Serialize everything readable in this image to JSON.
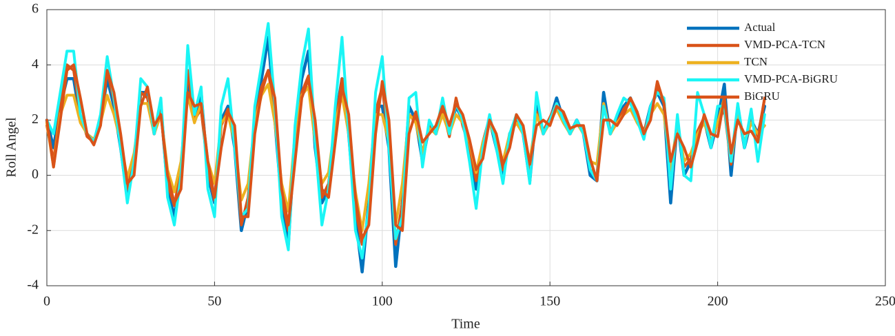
{
  "chart_data": {
    "type": "line",
    "xlabel": "Time",
    "ylabel": "Roll Angel",
    "xlim": [
      0,
      250
    ],
    "xticks": [
      0,
      50,
      100,
      150,
      200,
      250
    ],
    "ylim": [
      -4,
      6
    ],
    "yticks": [
      -4,
      -2,
      0,
      2,
      4,
      6
    ],
    "grid": true,
    "legend": "upper right",
    "x": [
      0,
      2,
      4,
      6,
      8,
      10,
      12,
      14,
      16,
      18,
      20,
      22,
      24,
      26,
      28,
      30,
      32,
      34,
      36,
      38,
      40,
      42,
      44,
      46,
      48,
      50,
      52,
      54,
      56,
      58,
      60,
      62,
      64,
      66,
      68,
      70,
      72,
      74,
      76,
      78,
      80,
      82,
      84,
      86,
      88,
      90,
      92,
      94,
      96,
      98,
      100,
      102,
      104,
      106,
      108,
      110,
      112,
      114,
      116,
      118,
      120,
      122,
      124,
      126,
      128,
      130,
      132,
      134,
      136,
      138,
      140,
      142,
      144,
      146,
      148,
      150,
      152,
      154,
      156,
      158,
      160,
      162,
      164,
      166,
      168,
      170,
      172,
      174,
      176,
      178,
      180,
      182,
      184,
      186,
      188,
      190,
      192,
      194,
      196,
      198,
      200,
      202,
      204,
      206,
      208,
      210,
      212,
      214
    ],
    "series": [
      {
        "name": "Actual",
        "color": "#0072bd",
        "values": [
          2,
          1,
          2.5,
          3.5,
          3.5,
          2,
          1.5,
          1.2,
          2,
          3.5,
          2.5,
          1,
          -0.8,
          0.5,
          3,
          3,
          1.5,
          2.5,
          -0.5,
          -1.5,
          0,
          3.5,
          2,
          3,
          0,
          -1,
          2,
          2.5,
          1,
          -2,
          -1,
          2,
          3.5,
          5,
          2,
          -1,
          -2.5,
          1.5,
          3.5,
          4.5,
          1,
          -1,
          -0.5,
          2,
          3.5,
          1.5,
          -1.5,
          -3.5,
          -1,
          2.5,
          2.5,
          1,
          -3.3,
          -1,
          2.5,
          2,
          0.5,
          1.8,
          1.5,
          2.5,
          1.5,
          2.5,
          2,
          1,
          -0.5,
          1,
          2,
          1,
          0,
          1.5,
          2,
          1.5,
          -0.2,
          2.5,
          1.5,
          2,
          2.8,
          2,
          1.5,
          2,
          1.5,
          0,
          -0.2,
          3,
          1.5,
          2,
          2.5,
          2.8,
          2,
          1.5,
          2.5,
          3,
          2.5,
          -1,
          2,
          0,
          0.5,
          1.5,
          2,
          1,
          2,
          3.3,
          0,
          2.5,
          1,
          2,
          1.5,
          2.5
        ]
      },
      {
        "name": "VMD-PCA-TCN",
        "color": "#d95319",
        "values": [
          1.8,
          0.5,
          2.5,
          4,
          3.8,
          2.2,
          1.4,
          1.2,
          2,
          3.8,
          2.7,
          1.2,
          -0.5,
          0.6,
          3,
          2.8,
          1.6,
          2.3,
          -0.3,
          -1.1,
          0.2,
          3.8,
          2,
          2.4,
          0.2,
          -0.9,
          1.8,
          2.4,
          1.2,
          -1.8,
          -0.8,
          2,
          3.2,
          3.8,
          2.2,
          -0.8,
          -2,
          1.2,
          3,
          3.6,
          1.2,
          -0.8,
          -0.3,
          1.8,
          3.5,
          1.6,
          -1.2,
          -2.5,
          -1.5,
          2.3,
          3.2,
          1.3,
          -2.5,
          -1,
          2.2,
          2,
          0.8,
          1.8,
          1.5,
          2.4,
          1.4,
          2.8,
          1.8,
          1,
          -0.2,
          1.2,
          2.1,
          1.2,
          0.2,
          1.4,
          2.1,
          1.6,
          0.1,
          2.3,
          1.6,
          2.1,
          2.6,
          2.1,
          1.6,
          1.9,
          1.6,
          0.2,
          0,
          2.6,
          1.6,
          1.9,
          2.4,
          2.7,
          2.1,
          1.6,
          2.3,
          3.2,
          2.6,
          -0.4,
          1.9,
          0.3,
          0.6,
          1.6,
          2.1,
          1.2,
          1.9,
          2.4,
          0.4,
          2.4,
          1.1,
          2,
          1.4,
          2.8
        ]
      },
      {
        "name": "TCN",
        "color": "#edb120",
        "values": [
          1.9,
          0.3,
          2.2,
          2.9,
          2.9,
          1.9,
          1.5,
          1.3,
          1.9,
          2.9,
          2.2,
          1.2,
          -0.1,
          0.8,
          2.6,
          2.6,
          1.5,
          2.2,
          0.2,
          -0.6,
          0.5,
          2.9,
          1.9,
          2.6,
          0.5,
          -0.3,
          1.9,
          2.2,
          1.2,
          -0.9,
          -0.3,
          1.9,
          2.9,
          3.3,
          1.9,
          -0.3,
          -1.3,
          1.5,
          2.9,
          3.2,
          1.2,
          -0.3,
          0.1,
          1.9,
          2.9,
          1.5,
          -0.6,
          -2,
          -0.3,
          2.2,
          2.2,
          1.2,
          -1.8,
          -0.3,
          2.2,
          1.9,
          0.8,
          1.7,
          1.5,
          2.2,
          1.5,
          2.2,
          1.9,
          1.2,
          0.1,
          1.2,
          1.9,
          1.2,
          0.5,
          1.5,
          1.9,
          1.5,
          0.5,
          2.2,
          1.5,
          1.9,
          2.4,
          1.9,
          1.5,
          1.9,
          1.5,
          0.5,
          0.4,
          2.6,
          1.5,
          1.9,
          2.2,
          2.4,
          1.9,
          1.5,
          2.2,
          2.6,
          2.2,
          0.2,
          1.9,
          0.5,
          0.8,
          1.5,
          1.9,
          1.2,
          1.9,
          2.8,
          0.5,
          2.2,
          1.2,
          1.9,
          1.5,
          1.8
        ]
      },
      {
        "name": "VMD-PCA-BiGRU",
        "color": "#1af5f5",
        "values": [
          2,
          1.5,
          3,
          4.5,
          4.5,
          2.2,
          1.5,
          1.2,
          2.2,
          4.3,
          2.8,
          1,
          -1,
          0.5,
          3.5,
          3.2,
          1.5,
          2.8,
          -0.8,
          -1.8,
          0,
          4.7,
          2.2,
          3.2,
          -0.5,
          -1.5,
          2.5,
          3.5,
          1,
          -1.5,
          -1.2,
          2.5,
          4,
          5.5,
          2.5,
          -1.5,
          -2.7,
          1.8,
          4,
          5.3,
          1.2,
          -1.8,
          -0.5,
          2.5,
          5,
          1.5,
          -2,
          -3,
          -1.2,
          3,
          4.3,
          1,
          -2.3,
          -1.5,
          2.8,
          3,
          0.3,
          2,
          1.5,
          2.8,
          1.5,
          2.6,
          2,
          0.5,
          -1.2,
          1,
          2.2,
          1,
          -0.3,
          1.5,
          2.2,
          1.5,
          -0.3,
          3,
          1.5,
          2,
          2.6,
          2,
          1.5,
          2,
          1.5,
          0.2,
          -0.2,
          2.5,
          1.5,
          2.2,
          2.8,
          2.6,
          2,
          1.3,
          2.5,
          3,
          2.8,
          -0.5,
          2.2,
          0,
          -0.2,
          3,
          2.2,
          1,
          2.5,
          2.5,
          0.5,
          2.6,
          1,
          2.4,
          0.5,
          2.2
        ]
      },
      {
        "name": "BiGRU",
        "color": "#d95319",
        "values": [
          2,
          0.3,
          2,
          3.8,
          4,
          2.8,
          1.5,
          1.1,
          1.8,
          3.8,
          3,
          1.5,
          -0.3,
          0,
          2.5,
          3.2,
          1.8,
          2.2,
          0,
          -1,
          -0.5,
          3,
          2.5,
          2.6,
          0.5,
          -0.8,
          1,
          2.3,
          1.8,
          -1.5,
          -1.5,
          1.5,
          3,
          3.8,
          2.8,
          -0.5,
          -1.8,
          0.5,
          2.8,
          3.5,
          2,
          -0.5,
          -0.8,
          1.2,
          3.2,
          2.2,
          -0.8,
          -2.3,
          -1.8,
          1.5,
          3.4,
          2,
          -1.8,
          -2,
          1.5,
          2.3,
          1.2,
          1.5,
          1.8,
          2.5,
          1.8,
          2.6,
          2.2,
          1.3,
          0.2,
          0.6,
          2,
          1.5,
          0.4,
          1,
          2.2,
          1.8,
          0.4,
          1.8,
          2,
          1.8,
          2.5,
          2.3,
          1.7,
          1.8,
          1.8,
          0.6,
          -0.2,
          2,
          2,
          1.8,
          2.2,
          2.8,
          2.3,
          1.5,
          2,
          3.4,
          2.6,
          0.5,
          1.5,
          1,
          0.3,
          1.2,
          2.2,
          1.5,
          1.4,
          2.8,
          0.8,
          2,
          1.5,
          1.6,
          1.2,
          2.8
        ]
      }
    ]
  }
}
